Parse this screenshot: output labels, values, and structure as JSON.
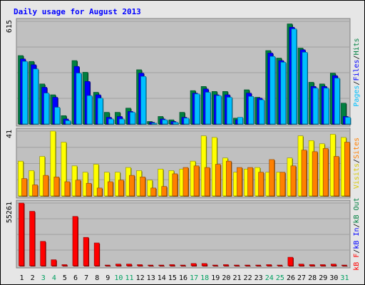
{
  "chart_data": {
    "type": "bar",
    "title": "Daily usage for August 2013",
    "categories": [
      "1",
      "2",
      "3",
      "4",
      "5",
      "6",
      "7",
      "8",
      "9",
      "10",
      "11",
      "12",
      "13",
      "14",
      "15",
      "16",
      "17",
      "18",
      "19",
      "20",
      "21",
      "22",
      "23",
      "24",
      "25",
      "26",
      "27",
      "28",
      "29",
      "30",
      "31"
    ],
    "weekend_days": [
      "3",
      "4",
      "10",
      "11",
      "17",
      "18",
      "24",
      "25",
      "31"
    ],
    "panels": [
      {
        "name": "hits-files-pages",
        "ymax": 615,
        "ymax_label": "615",
        "side_labels": [
          "Pages",
          "/",
          "Files",
          "/",
          "Hits"
        ],
        "series": [
          {
            "name": "Hits",
            "color": "#008040",
            "values": [
              410,
              375,
              240,
              175,
              50,
              380,
              310,
              190,
              70,
              70,
              95,
              325,
              15,
              45,
              25,
              70,
              200,
              225,
              195,
              195,
              35,
              205,
              160,
              440,
              395,
              600,
              455,
              250,
              240,
              305,
              125
            ]
          },
          {
            "name": "Files",
            "color": "#0000ff",
            "values": [
              390,
              355,
              220,
              160,
              30,
              345,
              255,
              175,
              40,
              45,
              75,
              305,
              10,
              30,
              15,
              40,
              185,
              210,
              175,
              175,
              25,
              185,
              155,
              425,
              380,
              580,
              445,
              225,
              225,
              290,
              45
            ]
          },
          {
            "name": "Pages",
            "color": "#00c0ff",
            "values": [
              375,
              330,
              185,
              100,
              20,
              305,
              170,
              155,
              30,
              30,
              70,
              285,
              5,
              25,
              10,
              35,
              180,
              190,
              170,
              160,
              40,
              165,
              145,
              405,
              370,
              570,
              430,
              215,
              215,
              275,
              40
            ]
          }
        ]
      },
      {
        "name": "visits-sites",
        "ymax": 41,
        "ymax_label": "41",
        "side_labels": [
          "Visits",
          "/",
          "Sites"
        ],
        "series": [
          {
            "name": "Visits",
            "color": "#ffff00",
            "values": [
              22,
              16,
              25,
              41,
              34,
              19,
              15,
              20,
              15,
              15,
              18,
              16,
              10,
              17,
              16,
              17,
              22,
              38,
              37,
              24,
              15,
              17,
              18,
              15,
              15,
              24,
              38,
              35,
              33,
              39,
              37
            ]
          },
          {
            "name": "Sites",
            "color": "#ff8000",
            "values": [
              11,
              7,
              13,
              12,
              9,
              10,
              8,
              5,
              9,
              10,
              13,
              12,
              5,
              6,
              14,
              18,
              19,
              18,
              20,
              22,
              18,
              18,
              15,
              23,
              15,
              19,
              29,
              28,
              30,
              25,
              34
            ]
          }
        ]
      },
      {
        "name": "kb-in-out",
        "ymax": 55261,
        "ymax_label": "55261",
        "side_labels": [
          "kB F",
          "/",
          "kB In",
          "/",
          "kB Out"
        ],
        "series": [
          {
            "name": "kB F",
            "color": "#ff0000",
            "values": [
              55261,
              48000,
              21500,
              5300,
              1000,
              43500,
              25000,
              20100,
              500,
              1500,
              1500,
              1000,
              500,
              500,
              1000,
              500,
              2000,
              2000,
              500,
              1000,
              500,
              500,
              500,
              1000,
              500,
              7500,
              1500,
              1000,
              1000,
              1500,
              500
            ]
          }
        ]
      }
    ],
    "gridlines_per_panel": 4,
    "colors": {
      "background": "#e6e6e6",
      "plot_background": "#c0c0c0",
      "title": "#0000ff",
      "weekend_label": "#00a060",
      "weekday_label": "#000000"
    }
  }
}
